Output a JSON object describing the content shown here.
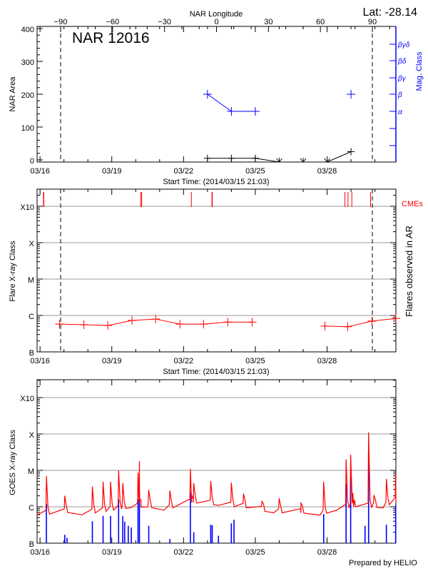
{
  "header": {
    "lat_label": "Lat: -28.14",
    "nar_label": "NAR 12016",
    "footer": "Prepared by HELIO"
  },
  "colors": {
    "area": "#000000",
    "mag_class": "#0000ff",
    "flares": "#ff0000",
    "cme": "#ff0000",
    "goes_long": "#ff0000",
    "goes_short": "#0000ff",
    "grid": "#999999"
  },
  "chart_data": [
    {
      "type": "line",
      "title": "NAR 12016",
      "xlabel": "Start Time: (2014/03/15 21:03)",
      "ylabel": "NAR Area",
      "y2label": "Mag. Class",
      "top_xlabel": "NAR Longitude",
      "xlim": [
        "2014-03-15T21:03",
        "2014-03-30T21:03"
      ],
      "ylim": [
        -6,
        406
      ],
      "x_tick_labels": [
        [
          "2014-03-16T00:00",
          "03/16"
        ],
        [
          "2014-03-19T00:00",
          "03/19"
        ],
        [
          "2014-03-22T00:00",
          "03/22"
        ],
        [
          "2014-03-25T00:00",
          "03/25"
        ],
        [
          "2014-03-28T00:00",
          "03/28"
        ]
      ],
      "y_ticks": [
        0,
        100,
        200,
        300,
        400
      ],
      "top_ticks": [
        -90,
        -60,
        -30,
        0,
        30,
        60,
        90
      ],
      "longitude_limb_lines": [
        -90,
        90
      ],
      "mag_class_labels": [
        "α",
        "β",
        "βγ",
        "βδ",
        "βγδ"
      ],
      "area": [
        {
          "t": "2014-03-23T00:00",
          "v": 5
        },
        {
          "t": "2014-03-24T00:00",
          "v": 5
        },
        {
          "t": "2014-03-25T00:00",
          "v": 5
        },
        {
          "t": "2014-03-26T00:00",
          "v": 0
        },
        {
          "t": "2014-03-27T00:00",
          "v": 0
        },
        {
          "t": "2014-03-28T00:00",
          "v": 0
        },
        {
          "t": "2014-03-29T00:00",
          "v": 25
        }
      ],
      "mag_class": [
        {
          "t": "2014-03-23T00:00",
          "v": "β"
        },
        {
          "t": "2014-03-24T00:00",
          "v": "α"
        },
        {
          "t": "2014-03-25T00:00",
          "v": "α"
        },
        {
          "t": "2014-03-29T00:00",
          "v": "β"
        }
      ]
    },
    {
      "type": "line",
      "xlabel": "Start Time: (2014/03/15 21:03)",
      "ylabel": "Flare X-ray Class",
      "y2label": "Flares observed in AR",
      "cme_label": "CMEs",
      "y_scale": "log",
      "y_tick_labels": [
        "B",
        "C",
        "M",
        "X",
        "X10"
      ],
      "grid": true,
      "flares": [
        {
          "t": "2014-03-16T19:30",
          "v": "B5.8"
        },
        {
          "t": "2014-03-17T20:00",
          "v": "B5.6"
        },
        {
          "t": "2014-03-18T20:00",
          "v": "B5.3"
        },
        {
          "t": "2014-03-19T20:20",
          "v": "B7.3"
        },
        {
          "t": "2014-03-20T20:00",
          "v": "B8.0"
        },
        {
          "t": "2014-03-21T20:20",
          "v": "B5.8"
        },
        {
          "t": "2014-03-22T20:00",
          "v": "B5.8"
        },
        {
          "t": "2014-03-23T20:20",
          "v": "B6.6"
        },
        {
          "t": "2014-03-24T20:50",
          "v": "B6.6"
        },
        {
          "t": "2014-03-27T21:50",
          "v": "B5.1"
        },
        {
          "t": "2014-03-28T20:40",
          "v": "B4.9"
        },
        {
          "t": "2014-03-29T21:00",
          "v": "B7.0"
        },
        {
          "t": "2014-03-30T21:00",
          "v": "B8.3"
        }
      ],
      "flare_gap_after_index": 8,
      "cmes": [
        "2014-03-16T03:30",
        "2014-03-16T03:50",
        "2014-03-20T05:00",
        "2014-03-20T06:00",
        "2014-03-22T07:50",
        "2014-03-23T04:30",
        "2014-03-23T04:50",
        "2014-03-28T17:55",
        "2014-03-28T21:00",
        "2014-03-29T00:50",
        "2014-03-29T19:40"
      ]
    },
    {
      "type": "line",
      "ylabel": "GOES X-ray Class",
      "y_scale": "log",
      "y_tick_labels": [
        "B",
        "C",
        "M",
        "X",
        "X10"
      ],
      "grid": true,
      "long_channel_background": [
        [
          "2014-03-15T21:03",
          "B5.9"
        ],
        [
          "2014-03-17T04:30",
          "B6.9"
        ],
        [
          "2014-03-17T18:10",
          "B6.0"
        ],
        [
          "2014-03-19T19:35",
          "B9.5"
        ],
        [
          "2014-03-20T11:55",
          "C1.0"
        ],
        [
          "2014-03-21T04:30",
          "B8.0"
        ],
        [
          "2014-03-22T08:05",
          "C1.3"
        ],
        [
          "2014-03-23T11:25",
          "C1.1"
        ],
        [
          "2014-03-24T14:50",
          "B9.4"
        ],
        [
          "2014-03-25T18:25",
          "B6.8"
        ],
        [
          "2014-03-26T21:45",
          "B6.8"
        ],
        [
          "2014-03-27T17:00",
          "B5.9"
        ],
        [
          "2014-03-28T09:30",
          "B8.0"
        ],
        [
          "2014-03-29T04:45",
          "C1.0"
        ],
        [
          "2014-03-30T08:20",
          "B9.4"
        ],
        [
          "2014-03-30T21:03",
          "C1.4"
        ]
      ],
      "long_channel_peaks": [
        [
          "2014-03-16T06:25",
          "C7.0"
        ],
        [
          "2014-03-17T00:50",
          "C2.0"
        ],
        [
          "2014-03-18T04:30",
          "C3.6"
        ],
        [
          "2014-03-18T15:15",
          "C4.9"
        ],
        [
          "2014-03-18T22:45",
          "C4.9"
        ],
        [
          "2014-03-19T06:50",
          "M1.0"
        ],
        [
          "2014-03-19T11:00",
          "C4.5"
        ],
        [
          "2014-03-20T02:20",
          "C8.6"
        ],
        [
          "2014-03-20T03:45",
          "M1.8"
        ],
        [
          "2014-03-20T13:05",
          "C2.9"
        ],
        [
          "2014-03-21T10:15",
          "C2.8"
        ],
        [
          "2014-03-22T06:50",
          "M1.1"
        ],
        [
          "2014-03-22T10:15",
          "C4.5"
        ],
        [
          "2014-03-23T03:15",
          "C5.1"
        ],
        [
          "2014-03-23T23:55",
          "C4.6"
        ],
        [
          "2014-03-24T12:10",
          "C2.3"
        ],
        [
          "2014-03-25T06:40",
          "C1.4"
        ],
        [
          "2014-03-25T23:55",
          "C1.7"
        ],
        [
          "2014-03-26T21:45",
          "C1.3"
        ],
        [
          "2014-03-27T20:35",
          "C4.9"
        ],
        [
          "2014-03-28T19:05",
          "M2.0"
        ],
        [
          "2014-03-28T23:40",
          "M2.7"
        ],
        [
          "2014-03-29T01:50",
          "C2.4"
        ],
        [
          "2014-03-29T17:40",
          "X1.1"
        ],
        [
          "2014-03-29T23:00",
          "C2.1"
        ],
        [
          "2014-03-30T11:30",
          "C5.8"
        ],
        [
          "2014-03-30T20:50",
          "C7.9"
        ]
      ],
      "short_channel_peaks": [
        [
          "2014-03-16T06:25",
          "C1.2"
        ],
        [
          "2014-03-17T00:50",
          "B1.7"
        ],
        [
          "2014-03-17T03:05",
          "B1.4"
        ],
        [
          "2014-03-18T04:30",
          "B4.0"
        ],
        [
          "2014-03-18T15:15",
          "B5.6"
        ],
        [
          "2014-03-18T22:45",
          "B5.6"
        ],
        [
          "2014-03-19T06:50",
          "C1.6"
        ],
        [
          "2014-03-19T11:00",
          "B5.5"
        ],
        [
          "2014-03-19T12:55",
          "B3.9"
        ],
        [
          "2014-03-19T16:30",
          "B3.0"
        ],
        [
          "2014-03-19T19:35",
          "B2.7"
        ],
        [
          "2014-03-20T02:20",
          "C1.6"
        ],
        [
          "2014-03-20T03:45",
          "C2.5"
        ],
        [
          "2014-03-20T13:05",
          "B3.0"
        ],
        [
          "2014-03-21T10:15",
          "B1.3"
        ],
        [
          "2014-03-22T06:50",
          "C2.6"
        ],
        [
          "2014-03-22T10:15",
          "B2.0"
        ],
        [
          "2014-03-23T03:15",
          "B3.2"
        ],
        [
          "2014-03-23T04:45",
          "B3.1"
        ],
        [
          "2014-03-23T11:00",
          "B1.6"
        ],
        [
          "2014-03-23T23:55",
          "B3.5"
        ],
        [
          "2014-03-24T02:35",
          "B4.4"
        ],
        [
          "2014-03-27T20:35",
          "B6.3"
        ],
        [
          "2014-03-28T19:05",
          "C4.2"
        ],
        [
          "2014-03-28T23:40",
          "C6.4"
        ],
        [
          "2014-03-29T14:05",
          "B3.0"
        ],
        [
          "2014-03-29T17:40",
          "M3.3"
        ],
        [
          "2014-03-30T11:30",
          "B3.2"
        ],
        [
          "2014-03-30T20:50",
          "C1.1"
        ]
      ]
    }
  ]
}
